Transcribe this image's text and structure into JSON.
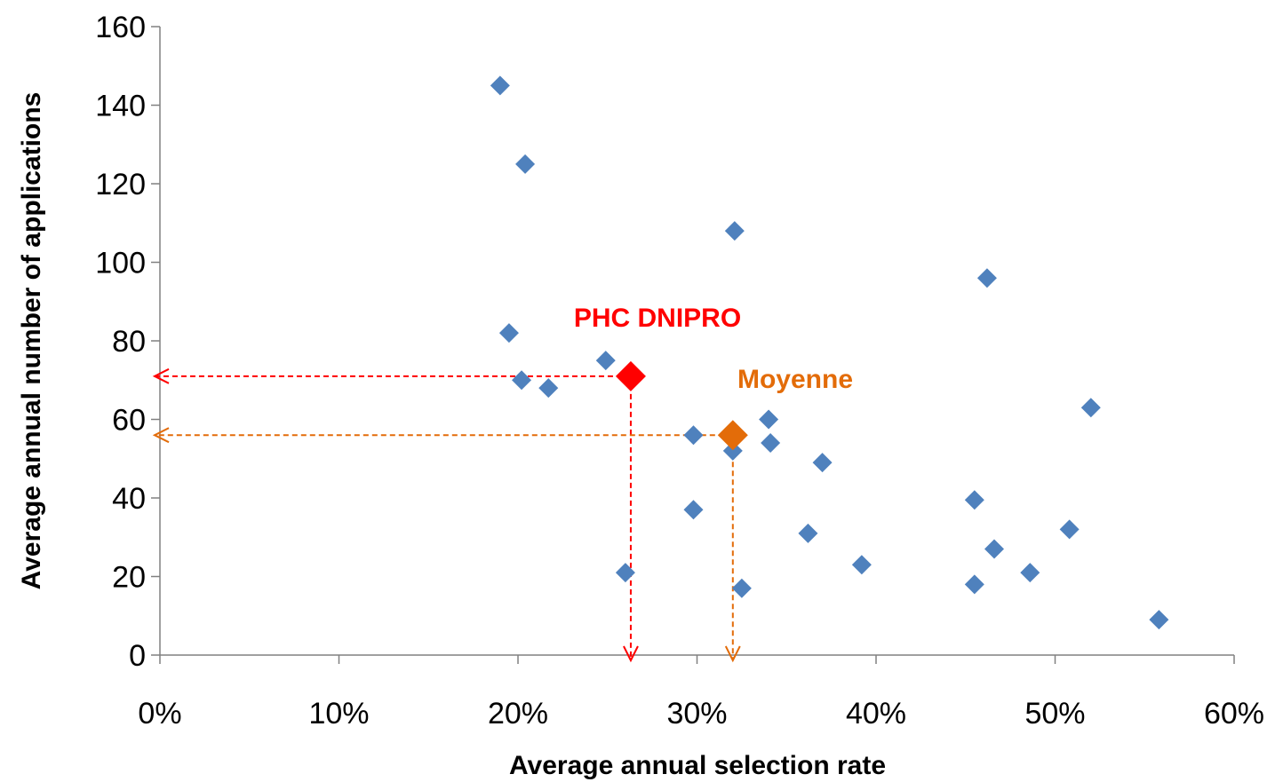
{
  "chart_data": {
    "type": "scatter",
    "xlabel": "Average annual selection rate",
    "ylabel": "Average annual number of applications",
    "xlim": [
      0,
      0.6
    ],
    "ylim": [
      0,
      160
    ],
    "x_ticks": [
      "0%",
      "10%",
      "20%",
      "30%",
      "40%",
      "50%",
      "60%"
    ],
    "x_tick_values": [
      0,
      0.1,
      0.2,
      0.3,
      0.4,
      0.5,
      0.6
    ],
    "y_ticks": [
      "0",
      "20",
      "40",
      "60",
      "80",
      "100",
      "120",
      "140",
      "160"
    ],
    "y_tick_values": [
      0,
      20,
      40,
      60,
      80,
      100,
      120,
      140,
      160
    ],
    "grid": false,
    "legend": "none",
    "colors": {
      "points": "#4f81bd",
      "highlight": "#ff0000",
      "average": "#e36c09",
      "axis": "#808080"
    },
    "points": [
      {
        "x": 0.19,
        "y": 145
      },
      {
        "x": 0.204,
        "y": 125
      },
      {
        "x": 0.321,
        "y": 108
      },
      {
        "x": 0.462,
        "y": 96
      },
      {
        "x": 0.195,
        "y": 82
      },
      {
        "x": 0.249,
        "y": 75
      },
      {
        "x": 0.202,
        "y": 70
      },
      {
        "x": 0.217,
        "y": 68
      },
      {
        "x": 0.52,
        "y": 63
      },
      {
        "x": 0.34,
        "y": 60
      },
      {
        "x": 0.298,
        "y": 56
      },
      {
        "x": 0.341,
        "y": 54
      },
      {
        "x": 0.32,
        "y": 52
      },
      {
        "x": 0.37,
        "y": 49
      },
      {
        "x": 0.455,
        "y": 39.5
      },
      {
        "x": 0.298,
        "y": 37
      },
      {
        "x": 0.508,
        "y": 32
      },
      {
        "x": 0.362,
        "y": 31
      },
      {
        "x": 0.466,
        "y": 27
      },
      {
        "x": 0.392,
        "y": 23
      },
      {
        "x": 0.26,
        "y": 21
      },
      {
        "x": 0.486,
        "y": 21
      },
      {
        "x": 0.455,
        "y": 18
      },
      {
        "x": 0.325,
        "y": 17
      },
      {
        "x": 0.558,
        "y": 9
      }
    ],
    "highlight": {
      "label": "PHC DNIPRO",
      "x": 0.263,
      "y": 71
    },
    "average": {
      "label": "Moyenne",
      "x": 0.32,
      "y": 56
    }
  }
}
